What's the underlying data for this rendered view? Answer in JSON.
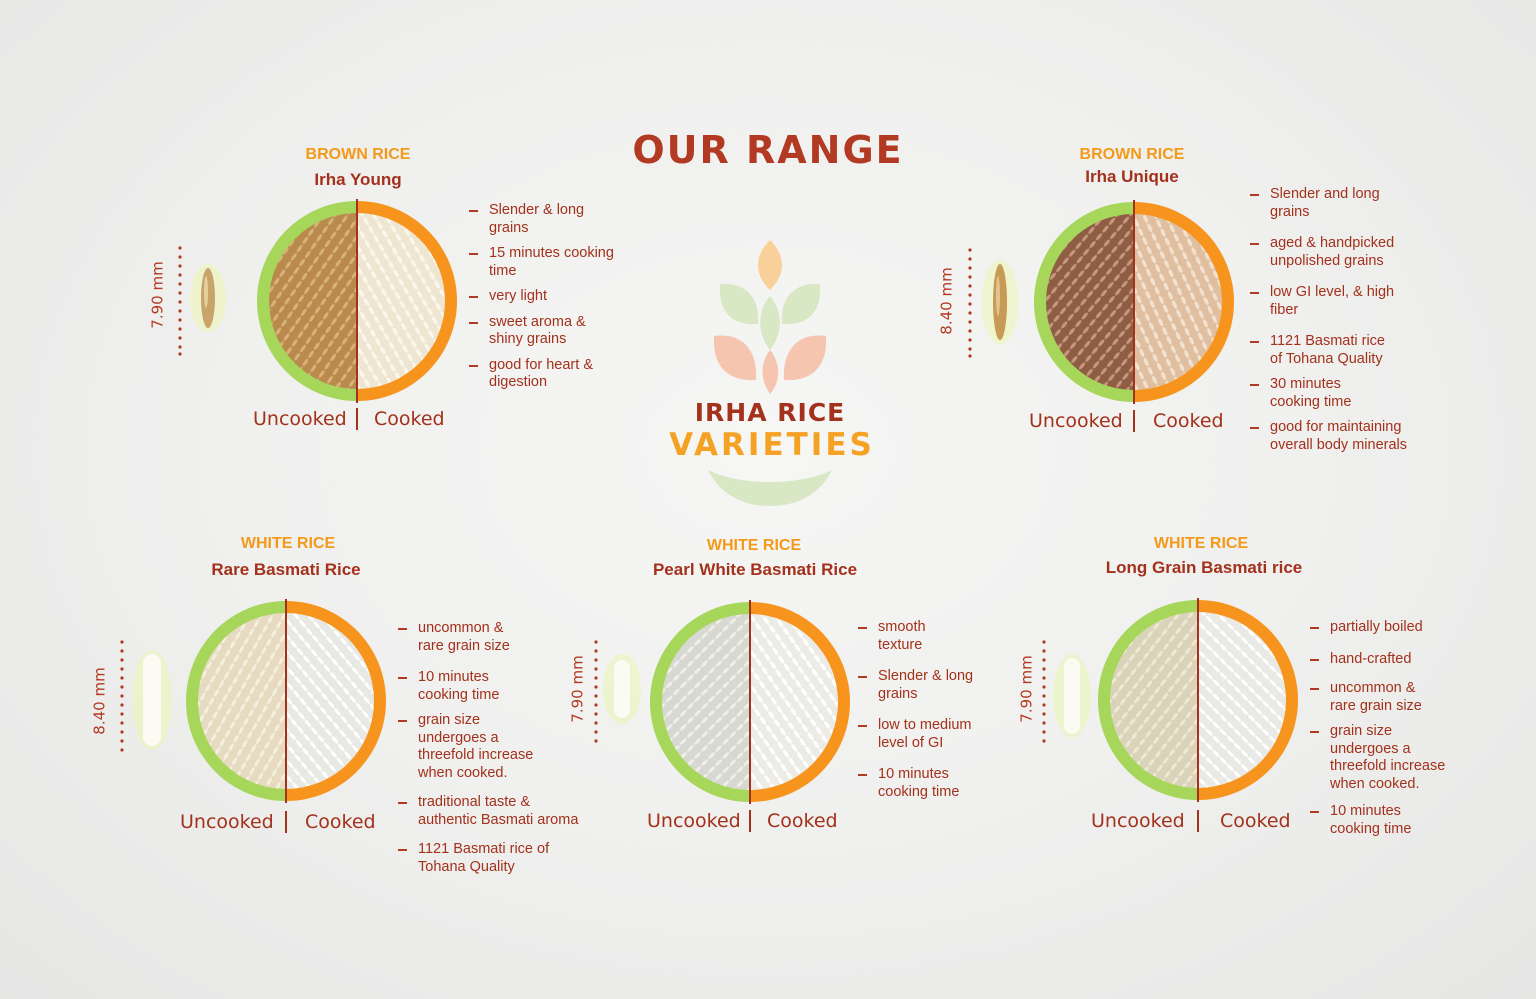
{
  "heading": "OUR RANGE",
  "brand": {
    "line1": "IRHA RICE",
    "line2": "VARIETIES"
  },
  "labels": {
    "uncooked": "Uncooked",
    "cooked": "Cooked"
  },
  "colors": {
    "brand_red": "#a3311b",
    "brand_orange": "#f39a1a",
    "ring_green": "#a6d65a",
    "ring_orange": "#f7941d"
  },
  "products": [
    {
      "category": "BROWN RICE",
      "name": "Irha Young",
      "grain_length": "7.90 mm",
      "features": [
        "Slender & long grains",
        "15 minutes cooking time",
        "very light",
        "sweet aroma & shiny grains",
        "good for heart & digestion"
      ]
    },
    {
      "category": "BROWN RICE",
      "name": "Irha Unique",
      "grain_length": "8.40 mm",
      "features": [
        "Slender and long grains",
        "aged & handpicked unpolished grains",
        "low GI level, & high fiber",
        "1121 Basmati rice of Tohana Quality",
        "30 minutes cooking time",
        "good for maintaining overall body minerals"
      ]
    },
    {
      "category": "WHITE RICE",
      "name": "Rare Basmati Rice",
      "grain_length": "8.40 mm",
      "features": [
        "uncommon & rare grain size",
        "10 minutes cooking time",
        "grain size undergoes a threefold increase when cooked.",
        "traditional taste & authentic Basmati aroma",
        "1121 Basmati rice of Tohana Quality"
      ]
    },
    {
      "category": "WHITE RICE",
      "name": "Pearl White Basmati Rice",
      "grain_length": "7.90 mm",
      "features": [
        "smooth texture",
        "Slender & long grains",
        "low to medium level of GI",
        "10 minutes cooking time"
      ]
    },
    {
      "category": "WHITE RICE",
      "name": "Long Grain Basmati rice",
      "grain_length": "7.90 mm",
      "features": [
        "partially boiled",
        "hand-crafted",
        "uncommon & rare grain size",
        "grain size undergoes a threefold increase when cooked.",
        "10 minutes cooking time"
      ]
    }
  ]
}
